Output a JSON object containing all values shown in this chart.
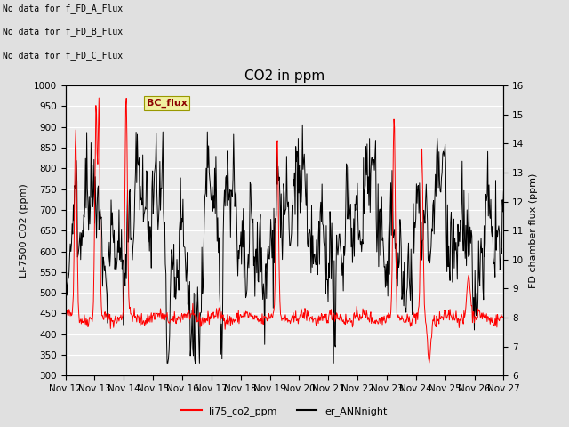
{
  "title": "CO2 in ppm",
  "ylabel_left": "Li-7500 CO2 (ppm)",
  "ylabel_right": "FD chamber flux (ppm)",
  "xlabels": [
    "Nov 12",
    "Nov 13",
    "Nov 14",
    "Nov 15",
    "Nov 16",
    "Nov 17",
    "Nov 18",
    "Nov 19",
    "Nov 20",
    "Nov 21",
    "Nov 22",
    "Nov 23",
    "Nov 24",
    "Nov 25",
    "Nov 26",
    "Nov 27"
  ],
  "ylim_left": [
    300,
    1000
  ],
  "ylim_right": [
    6.0,
    16.0
  ],
  "yticks_left": [
    300,
    350,
    400,
    450,
    500,
    550,
    600,
    650,
    700,
    750,
    800,
    850,
    900,
    950,
    1000
  ],
  "yticks_right": [
    6.0,
    7.0,
    8.0,
    9.0,
    10.0,
    11.0,
    12.0,
    13.0,
    14.0,
    15.0,
    16.0
  ],
  "annotations": [
    "No data for f_FD_A_Flux",
    "No data for f_FD_B_Flux",
    "No data for f_FD_C_Flux"
  ],
  "legend_label_red": "li75_co2_ppm",
  "legend_label_black": "er_ANNnight",
  "bc_flux_label": "BC_flux",
  "background_color": "#e0e0e0",
  "plot_background": "#ebebeb",
  "line_color_red": "#ff0000",
  "line_color_black": "#000000",
  "grid_color": "#ffffff",
  "title_fontsize": 11,
  "axis_fontsize": 8,
  "tick_fontsize": 7.5,
  "annotation_fontsize": 7,
  "legend_fontsize": 8
}
